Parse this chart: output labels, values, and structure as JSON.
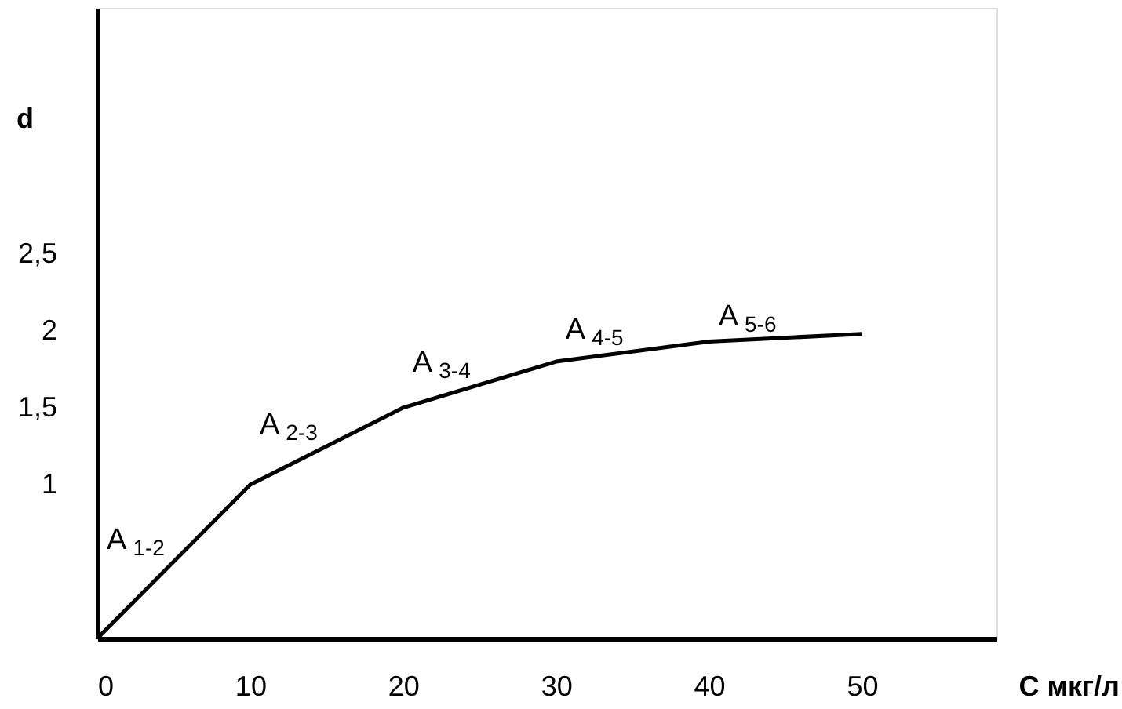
{
  "chart_data": {
    "type": "line",
    "xlabel": "C мкг/л",
    "ylabel": "d",
    "x": [
      0,
      10,
      20,
      30,
      40,
      50
    ],
    "series": [
      {
        "color": "#000000",
        "values": [
          0,
          1.0,
          1.5,
          1.8,
          1.93,
          1.98
        ]
      }
    ],
    "xlim": [
      0,
      58.8
    ],
    "xticks": [
      0,
      10,
      20,
      30,
      40,
      50
    ],
    "ylim": [
      0,
      4.1
    ],
    "yticks": [
      {
        "value": 1,
        "label": "1"
      },
      {
        "value": 1.5,
        "label": "1,5"
      },
      {
        "value": 2,
        "label": "2"
      },
      {
        "value": 2.5,
        "label": "2,5"
      }
    ],
    "annotations": [
      {
        "text": "A$_{1-2}$",
        "x": 5,
        "y": 0.5
      },
      {
        "text": "A$_{2-3}$",
        "x": 15,
        "y": 1.25
      },
      {
        "text": "A$_{3-4}$",
        "x": 25,
        "y": 1.65
      },
      {
        "text": "A$_{4-5}$",
        "x": 35,
        "y": 1.865
      },
      {
        "text": "A$_{5-6}$",
        "x": 45,
        "y": 1.955
      }
    ],
    "grid": false,
    "marker": "none",
    "line_style": "solid"
  }
}
